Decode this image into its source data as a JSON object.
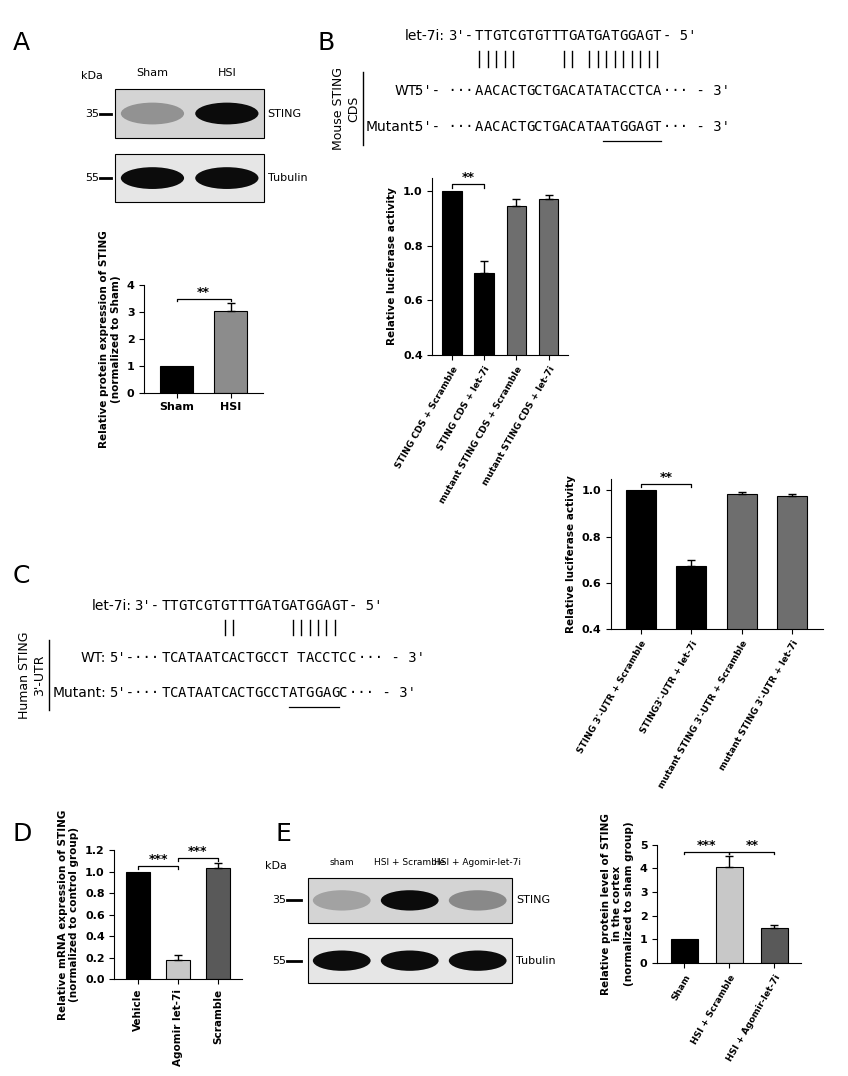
{
  "panel_labels": [
    "A",
    "B",
    "C",
    "D",
    "E"
  ],
  "blots": [
    {
      "unit": "kDa",
      "lanes": [
        "Sham",
        "HSI"
      ],
      "rows": [
        {
          "name": "STING",
          "marker": 35
        },
        {
          "name": "Tubulin",
          "marker": 55
        }
      ]
    },
    {
      "unit": "kDa",
      "lanes": [
        "sham",
        "HSI + Scramble",
        "HSI + Agomir-let-7i"
      ],
      "rows": [
        {
          "name": "STING",
          "marker": 35
        },
        {
          "name": "Tubulin",
          "marker": 55
        }
      ]
    }
  ],
  "sequences": [
    {
      "side_label": "Mouse STING\nCDS",
      "mirna_label": "let-7i:",
      "mirna": "TTGTCGTGTTTGATGATGGAGT",
      "mirna_ends": [
        "3'-",
        "- 5'"
      ],
      "target_ends": [
        "5'- ···",
        "··· - 3'"
      ],
      "pairs": [
        0,
        1,
        2,
        3,
        4,
        10,
        11,
        13,
        14,
        15,
        16,
        17,
        18,
        19,
        20,
        21
      ],
      "rows": [
        {
          "label": "WT:",
          "seq": "AACACTGCTGACATATACCTCA"
        },
        {
          "label": "Mutant:",
          "seq": "AACACTGCTGACATAATGGAGT",
          "underline": "ATGGAGT"
        }
      ]
    },
    {
      "side_label": "Human STING\n3'-UTR",
      "mirna_label": "let-7i:",
      "mirna": "TTGTCGTGTTTGATGATGGAGT",
      "mirna_ends": [
        "3'-",
        "- 5'"
      ],
      "target_ends": [
        "5'-···",
        "··· - 3'"
      ],
      "pairs": [
        7,
        8,
        15,
        16,
        17,
        18,
        19,
        20
      ],
      "rows": [
        {
          "label": "WT:",
          "seq": "TCATAATCACTGCCT TACCTCC"
        },
        {
          "label": "Mutant:",
          "seq": "TCATAATCACTGCCTATGGAGC",
          "underline": "ATGGAG"
        }
      ]
    }
  ],
  "chart_data": [
    {
      "type": "bar",
      "categories": [
        "Sham",
        "HSI"
      ],
      "values": [
        1.0,
        3.05
      ],
      "errors": [
        0,
        0.28
      ],
      "colors": [
        "#000000",
        "#8c8c8c"
      ],
      "ylabel": "Relative protein expression of STING\n(normalized to Sham)",
      "ylim": [
        0,
        4
      ],
      "yticks": [
        0,
        1,
        2,
        3,
        4
      ],
      "significance": [
        {
          "from": 0,
          "to": 1,
          "label": "**"
        }
      ]
    },
    {
      "type": "bar",
      "categories": [
        "STING CDS + Scramble",
        "STING CDS + let-7i",
        "mutant STING CDS + Scramble",
        "mutant STING CDS + let-7i"
      ],
      "values": [
        1.0,
        0.7,
        0.945,
        0.97
      ],
      "errors": [
        0,
        0.045,
        0.025,
        0.015
      ],
      "colors": [
        "#000000",
        "#000000",
        "#6e6e6e",
        "#6e6e6e"
      ],
      "ylabel": "Relative luciferase activity",
      "ylim": [
        0.4,
        1.05
      ],
      "yticks": [
        {
          "value": 0.4,
          "label": "0.4"
        },
        {
          "value": 0.6,
          "label": "0.6"
        },
        {
          "value": 0.8,
          "label": "0.8"
        },
        {
          "value": 1.0,
          "label": "1.0"
        }
      ],
      "significance": [
        {
          "from": 0,
          "to": 1,
          "label": "**"
        }
      ]
    },
    {
      "type": "bar",
      "categories": [
        "STING 3'-UTR + Scramble",
        "STING3'-UTR + let-7i",
        "mutant STING 3'-UTR + Scramble",
        "mutant STING 3'-UTR + let-7i"
      ],
      "values": [
        1.0,
        0.675,
        0.985,
        0.975
      ],
      "errors": [
        0,
        0.025,
        0.008,
        0.008
      ],
      "colors": [
        "#000000",
        "#000000",
        "#6e6e6e",
        "#6e6e6e"
      ],
      "ylabel": "Relative luciferase activity",
      "ylim": [
        0.4,
        1.05
      ],
      "yticks": [
        {
          "value": 0.4,
          "label": "0.4"
        },
        {
          "value": 0.6,
          "label": "0.6"
        },
        {
          "value": 0.8,
          "label": "0.8"
        },
        {
          "value": 1.0,
          "label": "1.0"
        }
      ],
      "significance": [
        {
          "from": 0,
          "to": 1,
          "label": "**"
        }
      ]
    },
    {
      "type": "bar",
      "categories": [
        "Vehicle",
        "Agomir let-7i",
        "Scramble"
      ],
      "values": [
        1.0,
        0.175,
        1.03
      ],
      "errors": [
        0,
        0.05,
        0.045
      ],
      "colors": [
        "#000000",
        "#c8c8c8",
        "#595959"
      ],
      "ylabel": "Relative mRNA expression of STING\n(normalized to control group)",
      "ylim": [
        0,
        1.2
      ],
      "yticks": [
        {
          "value": 0.0,
          "label": "0.0"
        },
        {
          "value": 0.2,
          "label": "0.2"
        },
        {
          "value": 0.4,
          "label": "0.4"
        },
        {
          "value": 0.6,
          "label": "0.6"
        },
        {
          "value": 0.8,
          "label": "0.8"
        },
        {
          "value": 1.0,
          "label": "1.0"
        },
        {
          "value": 1.2,
          "label": "1.2"
        }
      ],
      "significance": [
        {
          "from": 0,
          "to": 1,
          "label": "***"
        },
        {
          "from": 1,
          "to": 2,
          "label": "***"
        }
      ]
    },
    {
      "type": "bar",
      "categories": [
        "Sham",
        "HSI + Scramble",
        "HSI + Agomir-let-7i"
      ],
      "values": [
        1.0,
        4.05,
        1.5
      ],
      "errors": [
        0,
        0.45,
        0.1
      ],
      "colors": [
        "#000000",
        "#c8c8c8",
        "#595959"
      ],
      "ylabel": "Relative protein level of STING\nin the cortex\n(normalized to sham group)",
      "ylim": [
        0,
        5
      ],
      "yticks": [
        0,
        1,
        2,
        3,
        4,
        5
      ],
      "significance": [
        {
          "from": 0,
          "to": 1,
          "label": "***"
        },
        {
          "from": 1,
          "to": 2,
          "label": "**"
        }
      ]
    }
  ]
}
